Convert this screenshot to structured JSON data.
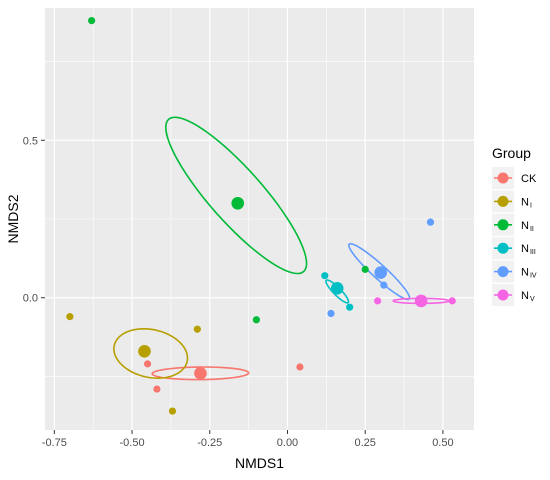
{
  "chart_data": {
    "type": "scatter",
    "xlabel": "NMDS1",
    "ylabel": "NMDS2",
    "xlim": [
      -0.78,
      0.6
    ],
    "ylim": [
      -0.42,
      0.92
    ],
    "x_ticks": [
      -0.75,
      -0.5,
      -0.25,
      0.0,
      0.25,
      0.5
    ],
    "x_tick_labels": [
      "-0.75",
      "-0.50",
      "-0.25",
      "0.00",
      "0.25",
      "0.50"
    ],
    "y_ticks": [
      0.0,
      0.5
    ],
    "y_tick_labels": [
      "0.0",
      "0.5"
    ],
    "grid": true,
    "legend": {
      "title": "Group",
      "placement": "right",
      "entries": [
        {
          "key": "CK",
          "main": "CK",
          "sub": "",
          "color": "#F8766D"
        },
        {
          "key": "NI",
          "main": "N",
          "sub": "I",
          "color": "#B79F00"
        },
        {
          "key": "NII",
          "main": "N",
          "sub": "II",
          "color": "#00BA38"
        },
        {
          "key": "NIII",
          "main": "N",
          "sub": "III",
          "color": "#00BFC4"
        },
        {
          "key": "NIV",
          "main": "N",
          "sub": "IV",
          "color": "#619CFF"
        },
        {
          "key": "NV",
          "main": "N",
          "sub": "V",
          "color": "#F564E3"
        }
      ]
    },
    "series": [
      {
        "key": "CK",
        "color": "#F8766D",
        "points": [
          {
            "x": -0.45,
            "y": -0.21
          },
          {
            "x": -0.42,
            "y": -0.29
          },
          {
            "x": 0.04,
            "y": -0.22
          }
        ],
        "centroid": {
          "x": -0.28,
          "y": -0.24
        },
        "ellipse": {
          "cx": -0.28,
          "cy": -0.24,
          "rx": 0.155,
          "ry": 0.02,
          "angle": 0.5
        }
      },
      {
        "key": "NI",
        "color": "#B79F00",
        "points": [
          {
            "x": -0.7,
            "y": -0.06
          },
          {
            "x": -0.29,
            "y": -0.1
          },
          {
            "x": -0.37,
            "y": -0.36
          }
        ],
        "centroid": {
          "x": -0.46,
          "y": -0.17
        },
        "ellipse": {
          "cx": -0.44,
          "cy": -0.177,
          "rx": 0.12,
          "ry": 0.076,
          "angle": -12
        }
      },
      {
        "key": "NII",
        "color": "#00BA38",
        "points": [
          {
            "x": -0.63,
            "y": 0.88
          },
          {
            "x": -0.1,
            "y": -0.07
          },
          {
            "x": 0.25,
            "y": 0.09
          }
        ],
        "centroid": {
          "x": -0.16,
          "y": 0.3
        },
        "ellipse": {
          "cx": -0.165,
          "cy": 0.325,
          "rx": 0.325,
          "ry": 0.085,
          "angle": -48
        }
      },
      {
        "key": "NIII",
        "color": "#00BFC4",
        "points": [
          {
            "x": 0.12,
            "y": 0.07
          },
          {
            "x": 0.2,
            "y": -0.03
          }
        ],
        "centroid": {
          "x": 0.16,
          "y": 0.03
        },
        "ellipse": {
          "cx": 0.16,
          "cy": 0.02,
          "rx": 0.05,
          "ry": 0.012,
          "angle": -45
        }
      },
      {
        "key": "NIV",
        "color": "#619CFF",
        "points": [
          {
            "x": 0.14,
            "y": -0.05
          },
          {
            "x": 0.31,
            "y": 0.04
          },
          {
            "x": 0.46,
            "y": 0.24
          }
        ],
        "centroid": {
          "x": 0.3,
          "y": 0.08
        },
        "ellipse": {
          "cx": 0.295,
          "cy": 0.083,
          "rx": 0.13,
          "ry": 0.022,
          "angle": -42
        }
      },
      {
        "key": "NV",
        "color": "#F564E3",
        "points": [
          {
            "x": 0.29,
            "y": -0.01
          },
          {
            "x": 0.53,
            "y": -0.01
          }
        ],
        "centroid": {
          "x": 0.43,
          "y": -0.01
        },
        "ellipse": {
          "cx": 0.43,
          "cy": -0.01,
          "rx": 0.09,
          "ry": 0.008,
          "angle": 0
        }
      }
    ]
  }
}
